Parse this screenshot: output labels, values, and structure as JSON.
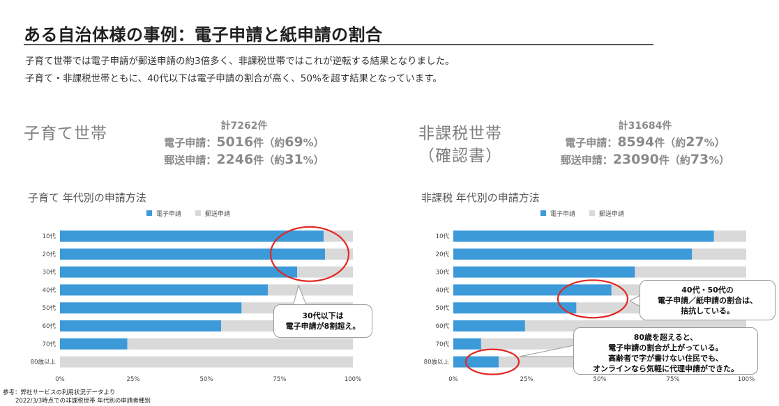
{
  "header": {
    "title": "ある自治体様の事例：電子申請と紙申請の割合",
    "desc1": "子育て世帯では電子申請が郵送申請の約3倍多く、非課税世帯ではこれが逆転する結果となりました。",
    "desc2": "子育て・非課税世帯ともに、40代以下は電子申請の割合が高く、50%を超す結果となっています。"
  },
  "left": {
    "label": "子育て世帯",
    "total": "計7262件",
    "e_label": "電子申請：",
    "e_num": "5016",
    "e_rest": "件（約",
    "e_pct": "69",
    "e_end": "%）",
    "m_label": "郵送申請：",
    "m_num": "2246",
    "m_rest": "件（約",
    "m_pct": "31",
    "m_end": "%）",
    "callout": [
      "30代以下は",
      "電子申請が8割超え。"
    ]
  },
  "right": {
    "label1": "非課税世帯",
    "label2": "（確認書）",
    "total": "計31684件",
    "e_label": "電子申請：",
    "e_num": "8594",
    "e_rest": "件（約",
    "e_pct": "27",
    "e_end": "%）",
    "m_label": "郵送申請：",
    "m_num": "23090",
    "m_rest": "件（約",
    "m_pct": "73",
    "m_end": "%）",
    "callout1": [
      "40代・50代の",
      "電子申請／紙申請の割合は、",
      "拮抗している。"
    ],
    "callout2": [
      "80歳を超えると、",
      "電子申請の割合が上がっている。",
      "高齢者で字が書けない住民でも、",
      "オンラインなら気軽に代理申請ができた。"
    ]
  },
  "notes": {
    "line1": "参考：弊社サービスの利用状況データより",
    "line2": "2022/3/3時点での非課税世帯 年代別の申請者種別"
  },
  "colors": {
    "electronic": "#3c9ad9",
    "mail": "#d9d9d9",
    "highlight": "#e3261f"
  },
  "chart_data": [
    {
      "type": "bar",
      "orientation": "horizontal",
      "stacked": true,
      "title": "子育て 年代別の申請方法",
      "categories": [
        "10代",
        "20代",
        "30代",
        "40代",
        "50代",
        "60代",
        "70代",
        "80歳以上"
      ],
      "series": [
        {
          "name": "電子申請",
          "values": [
            90,
            90.5,
            81,
            71,
            62,
            55,
            23,
            0
          ]
        },
        {
          "name": "郵送申請",
          "values": [
            10,
            9.5,
            19,
            29,
            38,
            45,
            77,
            100
          ]
        }
      ],
      "xticks": [
        "0%",
        "25%",
        "50%",
        "75%",
        "100%"
      ],
      "xlim": [
        0,
        100
      ],
      "legend": "top"
    },
    {
      "type": "bar",
      "orientation": "horizontal",
      "stacked": true,
      "title": "非課税 年代別の申請方法",
      "categories": [
        "10代",
        "20代",
        "30代",
        "40代",
        "50代",
        "60代",
        "70代",
        "80歳以上"
      ],
      "series": [
        {
          "name": "電子申請",
          "values": [
            89,
            81.5,
            62,
            54,
            42,
            24.5,
            9.5,
            15.5
          ]
        },
        {
          "name": "郵送申請",
          "values": [
            11,
            18.5,
            38,
            46,
            58,
            75.5,
            90.5,
            84.5
          ]
        }
      ],
      "xticks": [
        "0%",
        "25%",
        "50%",
        "75%",
        "100%"
      ],
      "xlim": [
        0,
        100
      ],
      "legend": "top"
    }
  ]
}
